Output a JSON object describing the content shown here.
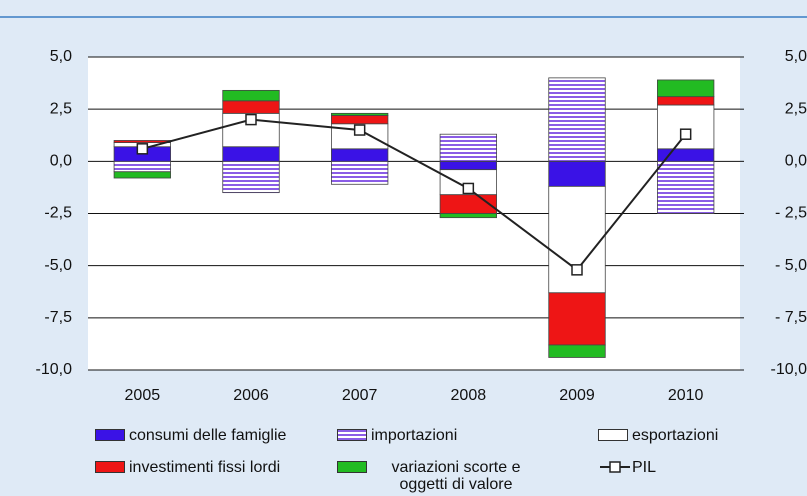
{
  "chart_data": {
    "type": "bar",
    "stacked": true,
    "categories": [
      "2005",
      "2006",
      "2007",
      "2008",
      "2009",
      "2010"
    ],
    "series": [
      {
        "name": "consumi delle famiglie",
        "color": "#3a12e6",
        "values": [
          0.7,
          0.7,
          0.6,
          -0.4,
          -1.2,
          0.6
        ]
      },
      {
        "name": "importazioni",
        "color": "#8a5ce6",
        "pattern": "hatch",
        "values": [
          -0.5,
          -1.5,
          -1.1,
          1.3,
          4.0,
          -2.5
        ]
      },
      {
        "name": "esportazioni",
        "color": "#ffffff",
        "values": [
          0.2,
          1.6,
          1.2,
          -1.2,
          -5.1,
          2.1
        ]
      },
      {
        "name": "investimenti fissi lordi",
        "color": "#ee1515",
        "values": [
          0.1,
          0.6,
          0.4,
          -0.9,
          -2.5,
          0.4
        ]
      },
      {
        "name": "variazioni scorte e oggetti di valore",
        "color": "#22bb22",
        "values": [
          -0.3,
          0.5,
          0.1,
          -0.2,
          -0.6,
          0.8
        ]
      },
      {
        "name": "PIL",
        "type": "line",
        "color": "#222222",
        "values": [
          0.6,
          2.0,
          1.5,
          -1.3,
          -5.2,
          1.3
        ]
      }
    ],
    "ylim": [
      -10,
      5
    ],
    "yticks": [
      {
        "value": 5,
        "label": "5,0"
      },
      {
        "value": 2.5,
        "label": "2,5"
      },
      {
        "value": 0,
        "label": "0,0"
      },
      {
        "value": -2.5,
        "label": "-2,5"
      },
      {
        "value": -5,
        "label": "-5,0"
      },
      {
        "value": -7.5,
        "label": "-7,5"
      },
      {
        "value": -10,
        "label": "-10,0"
      }
    ],
    "y2lim": [
      -10,
      5
    ],
    "y2ticks": [
      {
        "value": 5,
        "label": "5,0"
      },
      {
        "value": 2.5,
        "label": "2,5"
      },
      {
        "value": 0,
        "label": "0,0"
      },
      {
        "value": -2.5,
        "label": "- 2,5"
      },
      {
        "value": -5,
        "label": "- 5,0"
      },
      {
        "value": -7.5,
        "label": "- 7,5"
      },
      {
        "value": -10,
        "label": "-10,0"
      }
    ],
    "grid": true
  }
}
